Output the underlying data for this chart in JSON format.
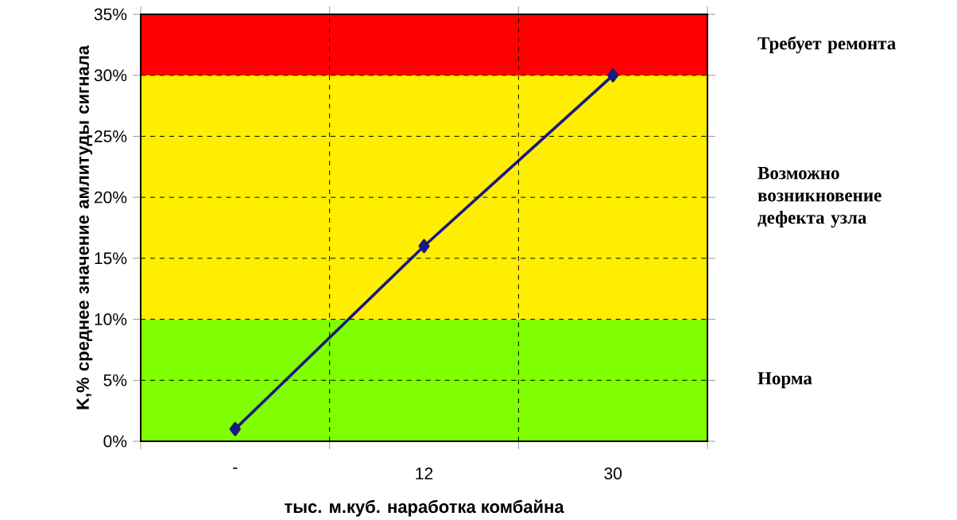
{
  "chart_data": {
    "type": "line",
    "xlabel": "тыс. м.куб. наработка комбайна",
    "ylabel": "K,% среднее значение амлитуды сигнала",
    "categories": [
      "-",
      "12",
      "30"
    ],
    "series": [
      {
        "color": "#1a1a80",
        "values": [
          1,
          16,
          30
        ]
      }
    ],
    "ylim": [
      0,
      35
    ],
    "yticks": [
      {
        "value": 0,
        "label": "0%"
      },
      {
        "value": 5,
        "label": "5%"
      },
      {
        "value": 10,
        "label": "10%"
      },
      {
        "value": 15,
        "label": "15%"
      },
      {
        "value": 20,
        "label": "20%"
      },
      {
        "value": 25,
        "label": "25%"
      },
      {
        "value": 30,
        "label": "30%"
      },
      {
        "value": 35,
        "label": "35%"
      }
    ],
    "bands": [
      {
        "axis": "y",
        "from": 0,
        "to": 10,
        "label": "Норма",
        "color": "#80ff00"
      },
      {
        "axis": "y",
        "from": 10,
        "to": 30,
        "label": "Возможно возникновение дефекта узла",
        "color": "#ffee00"
      },
      {
        "axis": "y",
        "from": 30,
        "to": 35,
        "label": "Требует ремонта",
        "color": "#ff0000"
      }
    ],
    "grid": true,
    "marker": "diamond",
    "line_style": "solid"
  }
}
